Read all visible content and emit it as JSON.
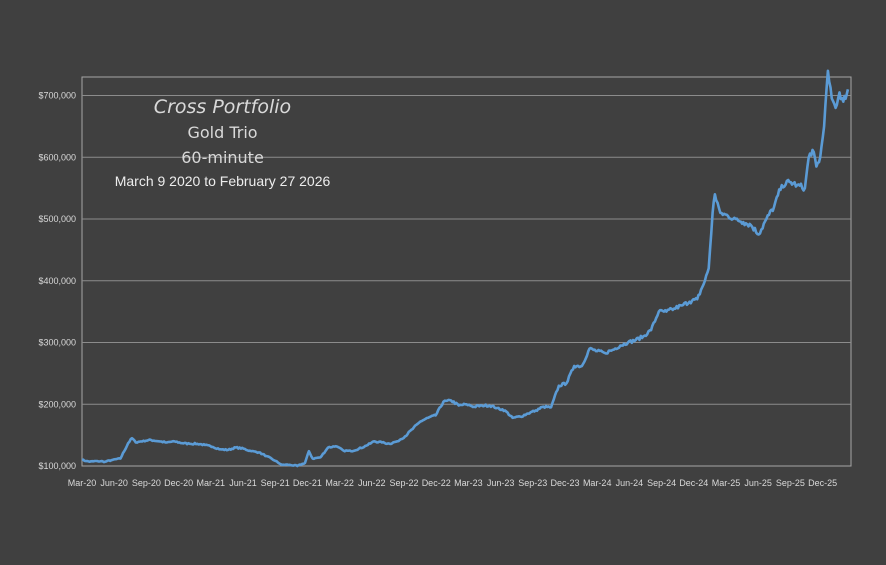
{
  "chart_data": {
    "type": "line",
    "title": "Cross Portfolio",
    "subtitle_lines": [
      "Gold Trio",
      "60-minute",
      "March 9 2020 to February 27 2026"
    ],
    "xlabel": "",
    "ylabel": "",
    "x_tick_labels": [
      "Mar-20",
      "Jun-20",
      "Sep-20",
      "Dec-20",
      "Mar-21",
      "Jun-21",
      "Sep-21",
      "Dec-21",
      "Mar-22",
      "Jun-22",
      "Sep-22",
      "Dec-22",
      "Mar-23",
      "Jun-23",
      "Sep-23",
      "Dec-23",
      "Mar-24",
      "Jun-24",
      "Sep-24",
      "Dec-24",
      "Mar-25",
      "Jun-25",
      "Sep-25",
      "Dec-25"
    ],
    "y_tick_labels": [
      "$100,000",
      "$200,000",
      "$300,000",
      "$400,000",
      "$500,000",
      "$600,000",
      "$700,000"
    ],
    "ylim": [
      100000,
      730000
    ],
    "grid": true,
    "legend": "none",
    "series_color": "#5b9bd5",
    "x_unit": "months since Mar-20",
    "points": [
      [
        0,
        110000
      ],
      [
        0.5,
        108000
      ],
      [
        1,
        107000
      ],
      [
        2,
        108000
      ],
      [
        3,
        107000
      ],
      [
        4,
        110000
      ],
      [
        5,
        112000
      ],
      [
        6,
        137000
      ],
      [
        6.5,
        145000
      ],
      [
        7,
        138000
      ],
      [
        8,
        141000
      ],
      [
        9,
        142000
      ],
      [
        10,
        140000
      ],
      [
        11,
        138000
      ],
      [
        12,
        140000
      ],
      [
        13,
        137000
      ],
      [
        14,
        136000
      ],
      [
        15,
        136000
      ],
      [
        16,
        134000
      ],
      [
        17,
        131000
      ],
      [
        18,
        127000
      ],
      [
        19,
        126000
      ],
      [
        20,
        130000
      ],
      [
        21,
        128000
      ],
      [
        22,
        124000
      ],
      [
        23,
        122000
      ],
      [
        24,
        116000
      ],
      [
        25,
        109000
      ],
      [
        26,
        102000
      ],
      [
        27,
        102000
      ],
      [
        28,
        100000
      ],
      [
        29,
        105000
      ],
      [
        29.5,
        124000
      ],
      [
        30,
        112000
      ],
      [
        31,
        114000
      ],
      [
        32,
        130000
      ],
      [
        33,
        132000
      ],
      [
        34,
        125000
      ],
      [
        35,
        124000
      ],
      [
        36,
        128000
      ],
      [
        37,
        133000
      ],
      [
        38,
        140000
      ],
      [
        39,
        138000
      ],
      [
        40,
        136000
      ],
      [
        41,
        140000
      ],
      [
        42,
        148000
      ],
      [
        43,
        160000
      ],
      [
        44,
        172000
      ],
      [
        45,
        178000
      ],
      [
        46,
        182000
      ],
      [
        47,
        204000
      ],
      [
        48,
        206000
      ],
      [
        49,
        198000
      ],
      [
        50,
        200000
      ],
      [
        51,
        196000
      ],
      [
        52,
        198000
      ],
      [
        53,
        198000
      ],
      [
        54,
        194000
      ],
      [
        55,
        190000
      ],
      [
        56,
        178000
      ],
      [
        57,
        180000
      ],
      [
        58,
        185000
      ],
      [
        59,
        190000
      ],
      [
        60,
        196000
      ],
      [
        61,
        195000
      ],
      [
        62,
        230000
      ],
      [
        63,
        234000
      ],
      [
        64,
        262000
      ],
      [
        65,
        262000
      ],
      [
        66,
        290000
      ],
      [
        67,
        286000
      ],
      [
        68,
        283000
      ],
      [
        69,
        288000
      ],
      [
        70,
        295000
      ],
      [
        71,
        300000
      ],
      [
        72,
        304000
      ],
      [
        73,
        310000
      ],
      [
        74,
        320000
      ],
      [
        75,
        350000
      ],
      [
        76,
        350000
      ],
      [
        77,
        355000
      ],
      [
        78,
        360000
      ],
      [
        79,
        366000
      ],
      [
        80,
        370000
      ],
      [
        81,
        400000
      ],
      [
        81.5,
        420000
      ],
      [
        82,
        510000
      ],
      [
        82.3,
        540000
      ],
      [
        83,
        510000
      ],
      [
        84,
        505000
      ],
      [
        85,
        500000
      ],
      [
        86,
        495000
      ],
      [
        87,
        490000
      ],
      [
        88,
        475000
      ],
      [
        89,
        500000
      ],
      [
        90,
        520000
      ],
      [
        91,
        555000
      ],
      [
        92,
        560000
      ],
      [
        93,
        555000
      ],
      [
        94,
        550000
      ],
      [
        94.5,
        600000
      ],
      [
        95,
        612000
      ],
      [
        95.5,
        585000
      ],
      [
        96,
        600000
      ],
      [
        96.5,
        650000
      ],
      [
        97,
        740000
      ],
      [
        97.5,
        695000
      ],
      [
        98,
        680000
      ],
      [
        98.5,
        705000
      ],
      [
        99,
        690000
      ],
      [
        99.6,
        710000
      ]
    ]
  }
}
